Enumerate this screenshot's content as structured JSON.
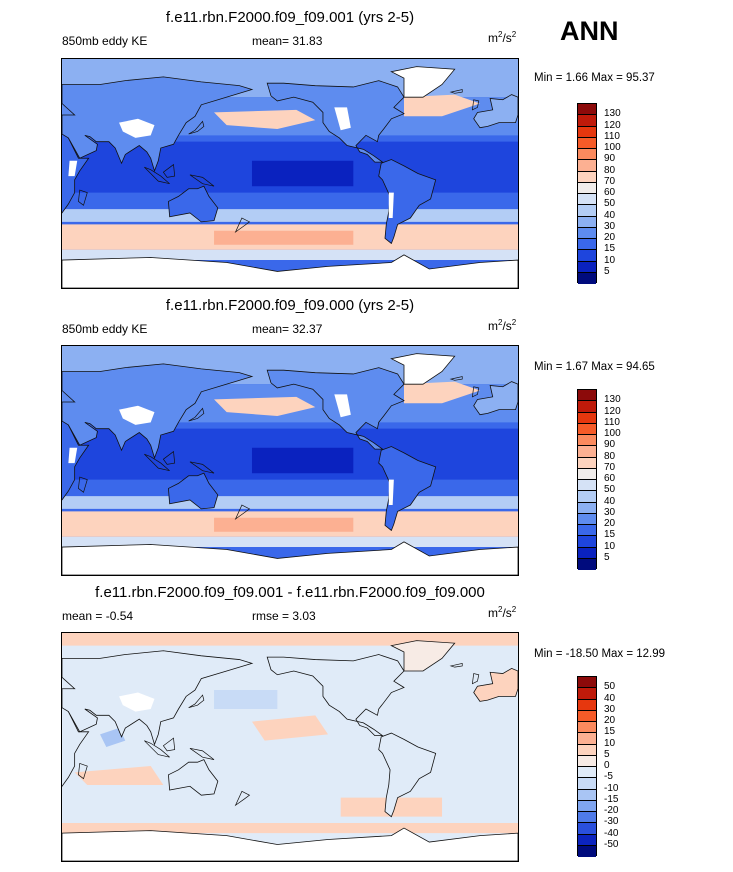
{
  "season": "ANN",
  "panels": [
    {
      "title": "f.e11.rbn.F2000.f09_f09.001 (yrs 2-5)",
      "left_label": "850mb eddy KE",
      "center_label": "mean=  31.83",
      "units": "m",
      "units_sup": "2",
      "units_tail": "/s",
      "units_sup2": "2",
      "minmax": "Min =   1.66 Max =  95.37",
      "levels": [
        "130",
        "120",
        "110",
        "100",
        "90",
        "80",
        "70",
        "60",
        "50",
        "40",
        "30",
        "20",
        "15",
        "10",
        "5"
      ],
      "colors": [
        "#8c0a0a",
        "#bf1a0a",
        "#e6370e",
        "#f65b28",
        "#fb8a5e",
        "#fcb092",
        "#fdd3be",
        "#f0ecea",
        "#d5e2f6",
        "#b3cdf5",
        "#8cb0f2",
        "#5e8cef",
        "#3a68ea",
        "#1e45dd",
        "#0a22bf",
        "#000b7d"
      ]
    },
    {
      "title": "f.e11.rbn.F2000.f09_f09.000 (yrs 2-5)",
      "left_label": "850mb eddy KE",
      "center_label": "mean=  32.37",
      "units": "m",
      "units_sup": "2",
      "units_tail": "/s",
      "units_sup2": "2",
      "minmax": "Min =   1.67 Max =  94.65",
      "levels": [
        "130",
        "120",
        "110",
        "100",
        "90",
        "80",
        "70",
        "60",
        "50",
        "40",
        "30",
        "20",
        "15",
        "10",
        "5"
      ],
      "colors": [
        "#8c0a0a",
        "#bf1a0a",
        "#e6370e",
        "#f65b28",
        "#fb8a5e",
        "#fcb092",
        "#fdd3be",
        "#f0ecea",
        "#d5e2f6",
        "#b3cdf5",
        "#8cb0f2",
        "#5e8cef",
        "#3a68ea",
        "#1e45dd",
        "#0a22bf",
        "#000b7d"
      ]
    },
    {
      "title": "f.e11.rbn.F2000.f09_f09.001 - f.e11.rbn.F2000.f09_f09.000",
      "left_label": "mean =  -0.54",
      "center_label": "rmse =   3.03",
      "units": "m",
      "units_sup": "2",
      "units_tail": "/s",
      "units_sup2": "2",
      "minmax": "Min = -18.50 Max =  12.99",
      "levels": [
        "50",
        "40",
        "30",
        "20",
        "15",
        "10",
        "5",
        "0",
        "-5",
        "-10",
        "-15",
        "-20",
        "-30",
        "-40",
        "-50"
      ],
      "colors": [
        "#8c0a0a",
        "#bf1a0a",
        "#e6370e",
        "#f65b28",
        "#fb8a5e",
        "#fcb092",
        "#fdd3be",
        "#f7ebe5",
        "#e0ebf8",
        "#c8dbf6",
        "#a9c5f4",
        "#7fa5f0",
        "#4f7be9",
        "#2a50dd",
        "#0c24bf",
        "#000b7d"
      ]
    }
  ]
}
